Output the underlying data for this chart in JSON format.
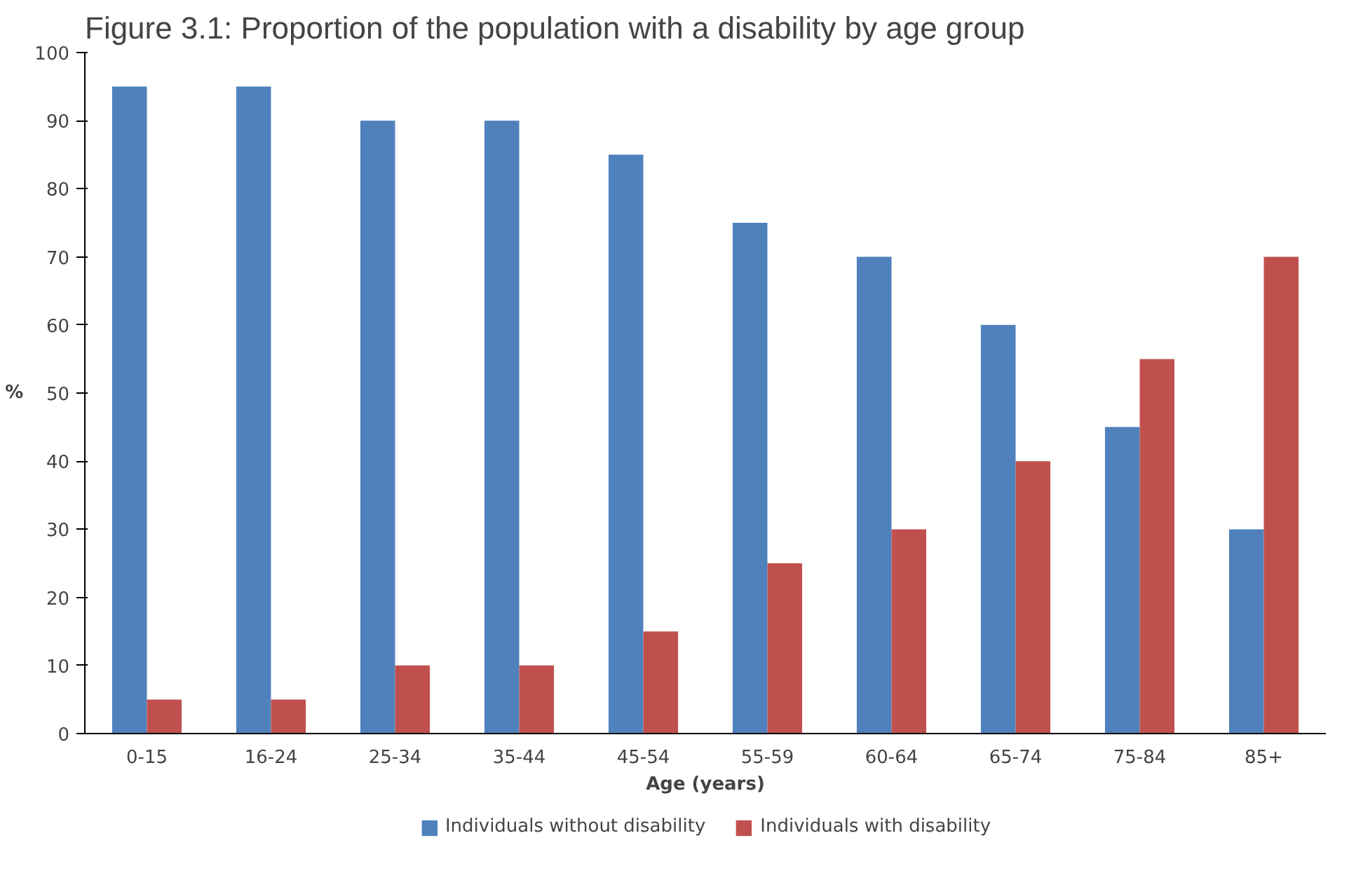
{
  "chart_data": {
    "type": "bar",
    "title": "Figure 3.1: Proportion of the population with a disability by age group",
    "xlabel": "Age (years)",
    "ylabel": "%",
    "categories": [
      "0-15",
      "16-24",
      "25-34",
      "35-44",
      "45-54",
      "55-59",
      "60-64",
      "65-74",
      "75-84",
      "85+"
    ],
    "series": [
      {
        "name": "Individuals without disability",
        "color": "#4f81bd",
        "values": [
          95,
          95,
          90,
          90,
          85,
          75,
          70,
          60,
          45,
          30
        ]
      },
      {
        "name": "Individuals with disability",
        "color": "#c0504d",
        "values": [
          5,
          5,
          10,
          10,
          15,
          25,
          30,
          40,
          55,
          70
        ]
      }
    ],
    "ylim": [
      0,
      100
    ],
    "yticks": [
      0,
      10,
      20,
      30,
      40,
      50,
      60,
      70,
      80,
      90,
      100
    ],
    "grid": false,
    "legend": "bottom"
  }
}
